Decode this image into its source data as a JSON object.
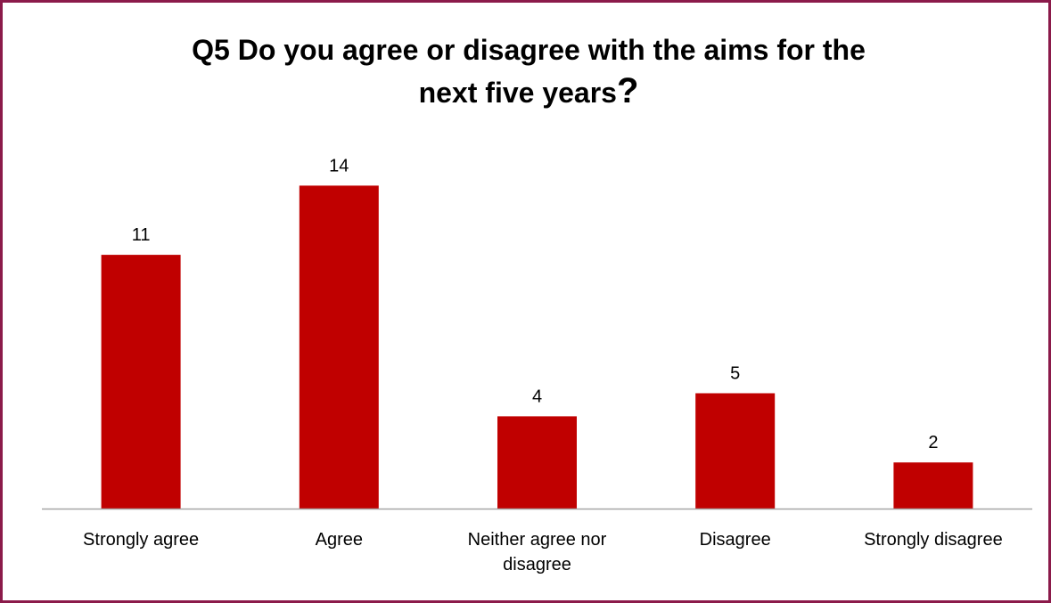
{
  "chart_data": {
    "type": "bar",
    "title_line1": "Q5 Do you agree or disagree with the aims for the",
    "title_line2": "next five years",
    "title_qmark": "?",
    "categories": [
      "Strongly agree",
      "Agree",
      "Neither agree nor disagree",
      "Disagree",
      "Strongly disagree"
    ],
    "category_lines": [
      [
        "Strongly agree"
      ],
      [
        "Agree"
      ],
      [
        "Neither agree nor",
        "disagree"
      ],
      [
        "Disagree"
      ],
      [
        "Strongly disagree"
      ]
    ],
    "values": [
      11,
      14,
      4,
      5,
      2
    ],
    "xlabel": "",
    "ylabel": "",
    "ylim": [
      0,
      14
    ],
    "grid": false,
    "legend": "none",
    "bar_color": "#c00000",
    "axis_color": "#a6a6a6",
    "frame_color": "#8b1a4a"
  }
}
